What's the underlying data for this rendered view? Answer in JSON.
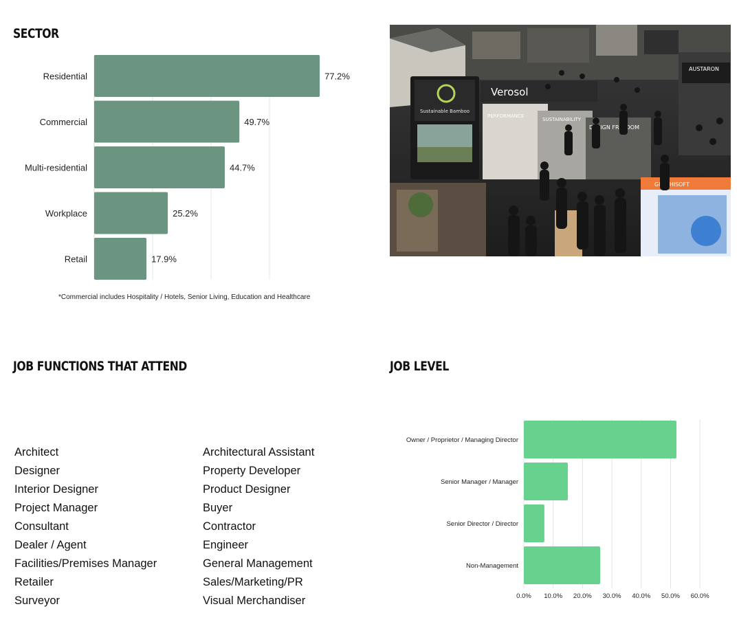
{
  "sector": {
    "heading": "SECTOR",
    "footnote": "*Commercial includes Hospitality / Hotels, Senior Living, Education and Healthcare"
  },
  "photo": {
    "signs": {
      "s1": "Sustainable Bamboo",
      "s2": "Verosol",
      "s3": "AUSTARON",
      "s4": "GRAPHISOFT",
      "s5": "DESIGN FREEDOM",
      "s6": "SUSTAINABILITY",
      "s7": "PERFORMANCE"
    }
  },
  "jobs": {
    "heading": "JOB FUNCTIONS THAT ATTEND",
    "column1": [
      "Architect",
      "Designer",
      "Interior Designer",
      "Project Manager",
      "Consultant",
      "Dealer / Agent",
      "Facilities/Premises Manager",
      "Retailer",
      "Surveyor"
    ],
    "column2": [
      "Architectural Assistant",
      "Property Developer",
      "Product Designer",
      "Buyer",
      "Contractor",
      "Engineer",
      "General Management",
      "Sales/Marketing/PR",
      "Visual Merchandiser"
    ]
  },
  "level": {
    "heading": "JOB LEVEL"
  },
  "chart_data": [
    {
      "type": "bar",
      "orientation": "horizontal",
      "title": "SECTOR",
      "categories": [
        "Residential",
        "Commercial",
        "Multi-residential",
        "Workplace",
        "Retail"
      ],
      "values": [
        77.2,
        49.7,
        44.7,
        25.2,
        17.9
      ],
      "value_labels": [
        "77.2%",
        "49.7%",
        "44.7%",
        "25.2%",
        "17.9%"
      ],
      "xlim": [
        0,
        100
      ],
      "grid": true,
      "color": "#6b9580"
    },
    {
      "type": "bar",
      "orientation": "horizontal",
      "title": "JOB LEVEL",
      "categories": [
        "Owner / Proprietor / Managing Director",
        "Senior Manager / Manager",
        "Senior Director / Director",
        "Non-Management"
      ],
      "values": [
        52,
        15,
        7,
        26
      ],
      "xlim": [
        0,
        60
      ],
      "xticks": [
        "0.0%",
        "10.0%",
        "20.0%",
        "30.0%",
        "40.0%",
        "50.0%",
        "60.0%"
      ],
      "grid": true,
      "color": "#67d18e"
    }
  ]
}
